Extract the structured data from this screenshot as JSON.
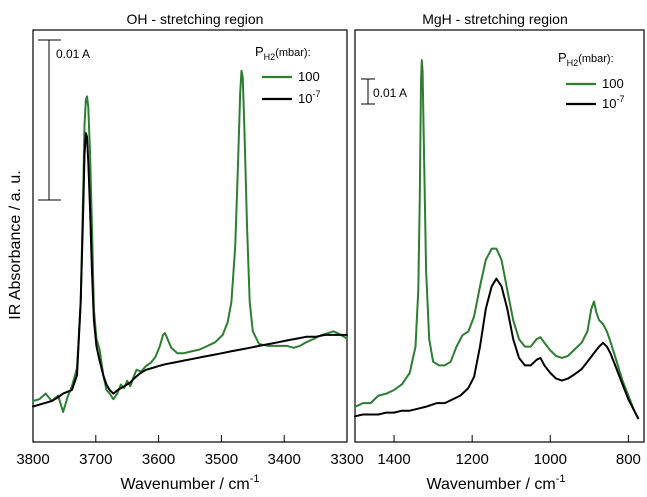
{
  "colors": {
    "green": "#2e7d32",
    "black": "#000000"
  },
  "figure": {
    "ylabel": "IR Absorbance / a. u."
  },
  "chart_data": [
    {
      "type": "line",
      "title": "OH - stretching region",
      "xlabel": "Wavenumber / cm",
      "xlabel_sup": "-1",
      "xlim": [
        3800,
        3300
      ],
      "ylim": [
        0,
        1
      ],
      "xticks": [
        3800,
        3700,
        3600,
        3500,
        3400,
        3300
      ],
      "grid": false,
      "scale_bar": {
        "label": "0.01 A",
        "from": 0.0,
        "to": 0.0
      },
      "legend": {
        "title_main": "P",
        "title_sub": "H2",
        "title_rest": "(mbar):",
        "placement": "top-right"
      },
      "series": [
        {
          "name": "100",
          "color": "#2e7d32",
          "points": [
            [
              3800,
              0.03
            ],
            [
              3790,
              0.035
            ],
            [
              3780,
              0.05
            ],
            [
              3770,
              0.03
            ],
            [
              3760,
              0.045
            ],
            [
              3752,
              0.0
            ],
            [
              3745,
              0.04
            ],
            [
              3738,
              0.07
            ],
            [
              3730,
              0.12
            ],
            [
              3724,
              0.3
            ],
            [
              3720,
              0.6
            ],
            [
              3718,
              0.78
            ],
            [
              3716,
              0.85
            ],
            [
              3714,
              0.86
            ],
            [
              3712,
              0.83
            ],
            [
              3709,
              0.7
            ],
            [
              3706,
              0.5
            ],
            [
              3703,
              0.28
            ],
            [
              3699,
              0.2
            ],
            [
              3694,
              0.17
            ],
            [
              3688,
              0.1
            ],
            [
              3683,
              0.06
            ],
            [
              3678,
              0.05
            ],
            [
              3672,
              0.035
            ],
            [
              3666,
              0.05
            ],
            [
              3660,
              0.075
            ],
            [
              3655,
              0.065
            ],
            [
              3650,
              0.085
            ],
            [
              3645,
              0.07
            ],
            [
              3640,
              0.095
            ],
            [
              3635,
              0.115
            ],
            [
              3628,
              0.11
            ],
            [
              3620,
              0.125
            ],
            [
              3612,
              0.135
            ],
            [
              3605,
              0.15
            ],
            [
              3598,
              0.18
            ],
            [
              3593,
              0.21
            ],
            [
              3590,
              0.215
            ],
            [
              3586,
              0.2
            ],
            [
              3580,
              0.175
            ],
            [
              3570,
              0.16
            ],
            [
              3560,
              0.16
            ],
            [
              3548,
              0.165
            ],
            [
              3535,
              0.17
            ],
            [
              3522,
              0.18
            ],
            [
              3510,
              0.19
            ],
            [
              3498,
              0.21
            ],
            [
              3490,
              0.245
            ],
            [
              3484,
              0.3
            ],
            [
              3478,
              0.45
            ],
            [
              3474,
              0.65
            ],
            [
              3470,
              0.87
            ],
            [
              3468,
              0.93
            ],
            [
              3466,
              0.91
            ],
            [
              3463,
              0.75
            ],
            [
              3459,
              0.5
            ],
            [
              3455,
              0.3
            ],
            [
              3450,
              0.22
            ],
            [
              3440,
              0.185
            ],
            [
              3425,
              0.18
            ],
            [
              3410,
              0.18
            ],
            [
              3395,
              0.18
            ],
            [
              3385,
              0.175
            ],
            [
              3375,
              0.18
            ],
            [
              3365,
              0.19
            ],
            [
              3352,
              0.2
            ],
            [
              3340,
              0.21
            ],
            [
              3330,
              0.215
            ],
            [
              3322,
              0.22
            ],
            [
              3315,
              0.215
            ],
            [
              3305,
              0.205
            ],
            [
              3300,
              0.2
            ]
          ]
        },
        {
          "name": "10",
          "name_sup": "-7",
          "color": "#000000",
          "points": [
            [
              3800,
              0.015
            ],
            [
              3790,
              0.02
            ],
            [
              3780,
              0.025
            ],
            [
              3770,
              0.03
            ],
            [
              3760,
              0.04
            ],
            [
              3752,
              0.05
            ],
            [
              3745,
              0.055
            ],
            [
              3738,
              0.06
            ],
            [
              3730,
              0.1
            ],
            [
              3724,
              0.3
            ],
            [
              3720,
              0.55
            ],
            [
              3718,
              0.7
            ],
            [
              3716,
              0.76
            ],
            [
              3714,
              0.75
            ],
            [
              3712,
              0.68
            ],
            [
              3709,
              0.55
            ],
            [
              3706,
              0.38
            ],
            [
              3703,
              0.25
            ],
            [
              3699,
              0.18
            ],
            [
              3694,
              0.14
            ],
            [
              3688,
              0.1
            ],
            [
              3683,
              0.075
            ],
            [
              3678,
              0.06
            ],
            [
              3672,
              0.05
            ],
            [
              3665,
              0.06
            ],
            [
              3655,
              0.07
            ],
            [
              3645,
              0.08
            ],
            [
              3640,
              0.09
            ],
            [
              3630,
              0.105
            ],
            [
              3620,
              0.115
            ],
            [
              3610,
              0.12
            ],
            [
              3600,
              0.125
            ],
            [
              3590,
              0.13
            ],
            [
              3575,
              0.135
            ],
            [
              3560,
              0.14
            ],
            [
              3545,
              0.145
            ],
            [
              3530,
              0.15
            ],
            [
              3515,
              0.155
            ],
            [
              3500,
              0.16
            ],
            [
              3485,
              0.165
            ],
            [
              3470,
              0.17
            ],
            [
              3455,
              0.175
            ],
            [
              3440,
              0.18
            ],
            [
              3425,
              0.185
            ],
            [
              3410,
              0.19
            ],
            [
              3395,
              0.195
            ],
            [
              3380,
              0.2
            ],
            [
              3365,
              0.205
            ],
            [
              3350,
              0.205
            ],
            [
              3335,
              0.21
            ],
            [
              3320,
              0.21
            ],
            [
              3300,
              0.21
            ]
          ]
        }
      ]
    },
    {
      "type": "line",
      "title": "MgH - stretching region",
      "xlabel": "Wavenumber / cm",
      "xlabel_sup": "-1",
      "xlim": [
        1500,
        760
      ],
      "ylim": [
        0,
        1
      ],
      "xticks": [
        1400,
        1200,
        1000,
        800
      ],
      "grid": false,
      "scale_bar": {
        "label": "0.01 A",
        "from": 0.0,
        "to": 0.0
      },
      "legend": {
        "title_main": "P",
        "title_sub": "H2",
        "title_rest": "(mbar):",
        "placement": "top-right"
      },
      "series": [
        {
          "name": "100",
          "color": "#2e7d32",
          "points": [
            [
              1500,
              0.04
            ],
            [
              1480,
              0.05
            ],
            [
              1460,
              0.05
            ],
            [
              1440,
              0.07
            ],
            [
              1420,
              0.075
            ],
            [
              1400,
              0.085
            ],
            [
              1380,
              0.1
            ],
            [
              1360,
              0.13
            ],
            [
              1345,
              0.2
            ],
            [
              1338,
              0.35
            ],
            [
              1334,
              0.6
            ],
            [
              1331,
              0.9
            ],
            [
              1329,
              0.96
            ],
            [
              1327,
              0.93
            ],
            [
              1323,
              0.7
            ],
            [
              1318,
              0.4
            ],
            [
              1310,
              0.22
            ],
            [
              1300,
              0.16
            ],
            [
              1285,
              0.15
            ],
            [
              1270,
              0.15
            ],
            [
              1255,
              0.16
            ],
            [
              1240,
              0.2
            ],
            [
              1225,
              0.23
            ],
            [
              1210,
              0.24
            ],
            [
              1195,
              0.28
            ],
            [
              1180,
              0.36
            ],
            [
              1165,
              0.43
            ],
            [
              1150,
              0.46
            ],
            [
              1138,
              0.46
            ],
            [
              1125,
              0.43
            ],
            [
              1110,
              0.35
            ],
            [
              1095,
              0.27
            ],
            [
              1080,
              0.22
            ],
            [
              1065,
              0.2
            ],
            [
              1050,
              0.2
            ],
            [
              1035,
              0.22
            ],
            [
              1025,
              0.225
            ],
            [
              1015,
              0.21
            ],
            [
              1000,
              0.19
            ],
            [
              985,
              0.175
            ],
            [
              970,
              0.17
            ],
            [
              955,
              0.175
            ],
            [
              940,
              0.19
            ],
            [
              920,
              0.21
            ],
            [
              905,
              0.24
            ],
            [
              895,
              0.3
            ],
            [
              888,
              0.32
            ],
            [
              882,
              0.29
            ],
            [
              875,
              0.27
            ],
            [
              865,
              0.26
            ],
            [
              855,
              0.24
            ],
            [
              845,
              0.21
            ],
            [
              830,
              0.16
            ],
            [
              815,
              0.11
            ],
            [
              800,
              0.07
            ],
            [
              785,
              0.03
            ],
            [
              775,
              0.01
            ]
          ]
        },
        {
          "name": "10",
          "name_sup": "-7",
          "color": "#000000",
          "points": [
            [
              1500,
              0.015
            ],
            [
              1480,
              0.02
            ],
            [
              1460,
              0.02
            ],
            [
              1440,
              0.02
            ],
            [
              1420,
              0.025
            ],
            [
              1400,
              0.025
            ],
            [
              1380,
              0.03
            ],
            [
              1360,
              0.03
            ],
            [
              1340,
              0.035
            ],
            [
              1320,
              0.04
            ],
            [
              1305,
              0.045
            ],
            [
              1290,
              0.05
            ],
            [
              1270,
              0.05
            ],
            [
              1250,
              0.06
            ],
            [
              1230,
              0.07
            ],
            [
              1210,
              0.09
            ],
            [
              1195,
              0.12
            ],
            [
              1180,
              0.2
            ],
            [
              1165,
              0.3
            ],
            [
              1150,
              0.36
            ],
            [
              1138,
              0.38
            ],
            [
              1125,
              0.36
            ],
            [
              1110,
              0.3
            ],
            [
              1095,
              0.22
            ],
            [
              1080,
              0.17
            ],
            [
              1065,
              0.15
            ],
            [
              1050,
              0.15
            ],
            [
              1035,
              0.165
            ],
            [
              1025,
              0.17
            ],
            [
              1015,
              0.15
            ],
            [
              1000,
              0.13
            ],
            [
              985,
              0.115
            ],
            [
              970,
              0.11
            ],
            [
              955,
              0.115
            ],
            [
              940,
              0.125
            ],
            [
              920,
              0.14
            ],
            [
              905,
              0.16
            ],
            [
              890,
              0.18
            ],
            [
              875,
              0.2
            ],
            [
              865,
              0.21
            ],
            [
              855,
              0.2
            ],
            [
              845,
              0.18
            ],
            [
              830,
              0.14
            ],
            [
              815,
              0.1
            ],
            [
              800,
              0.06
            ],
            [
              785,
              0.03
            ],
            [
              775,
              0.01
            ]
          ]
        }
      ]
    }
  ]
}
